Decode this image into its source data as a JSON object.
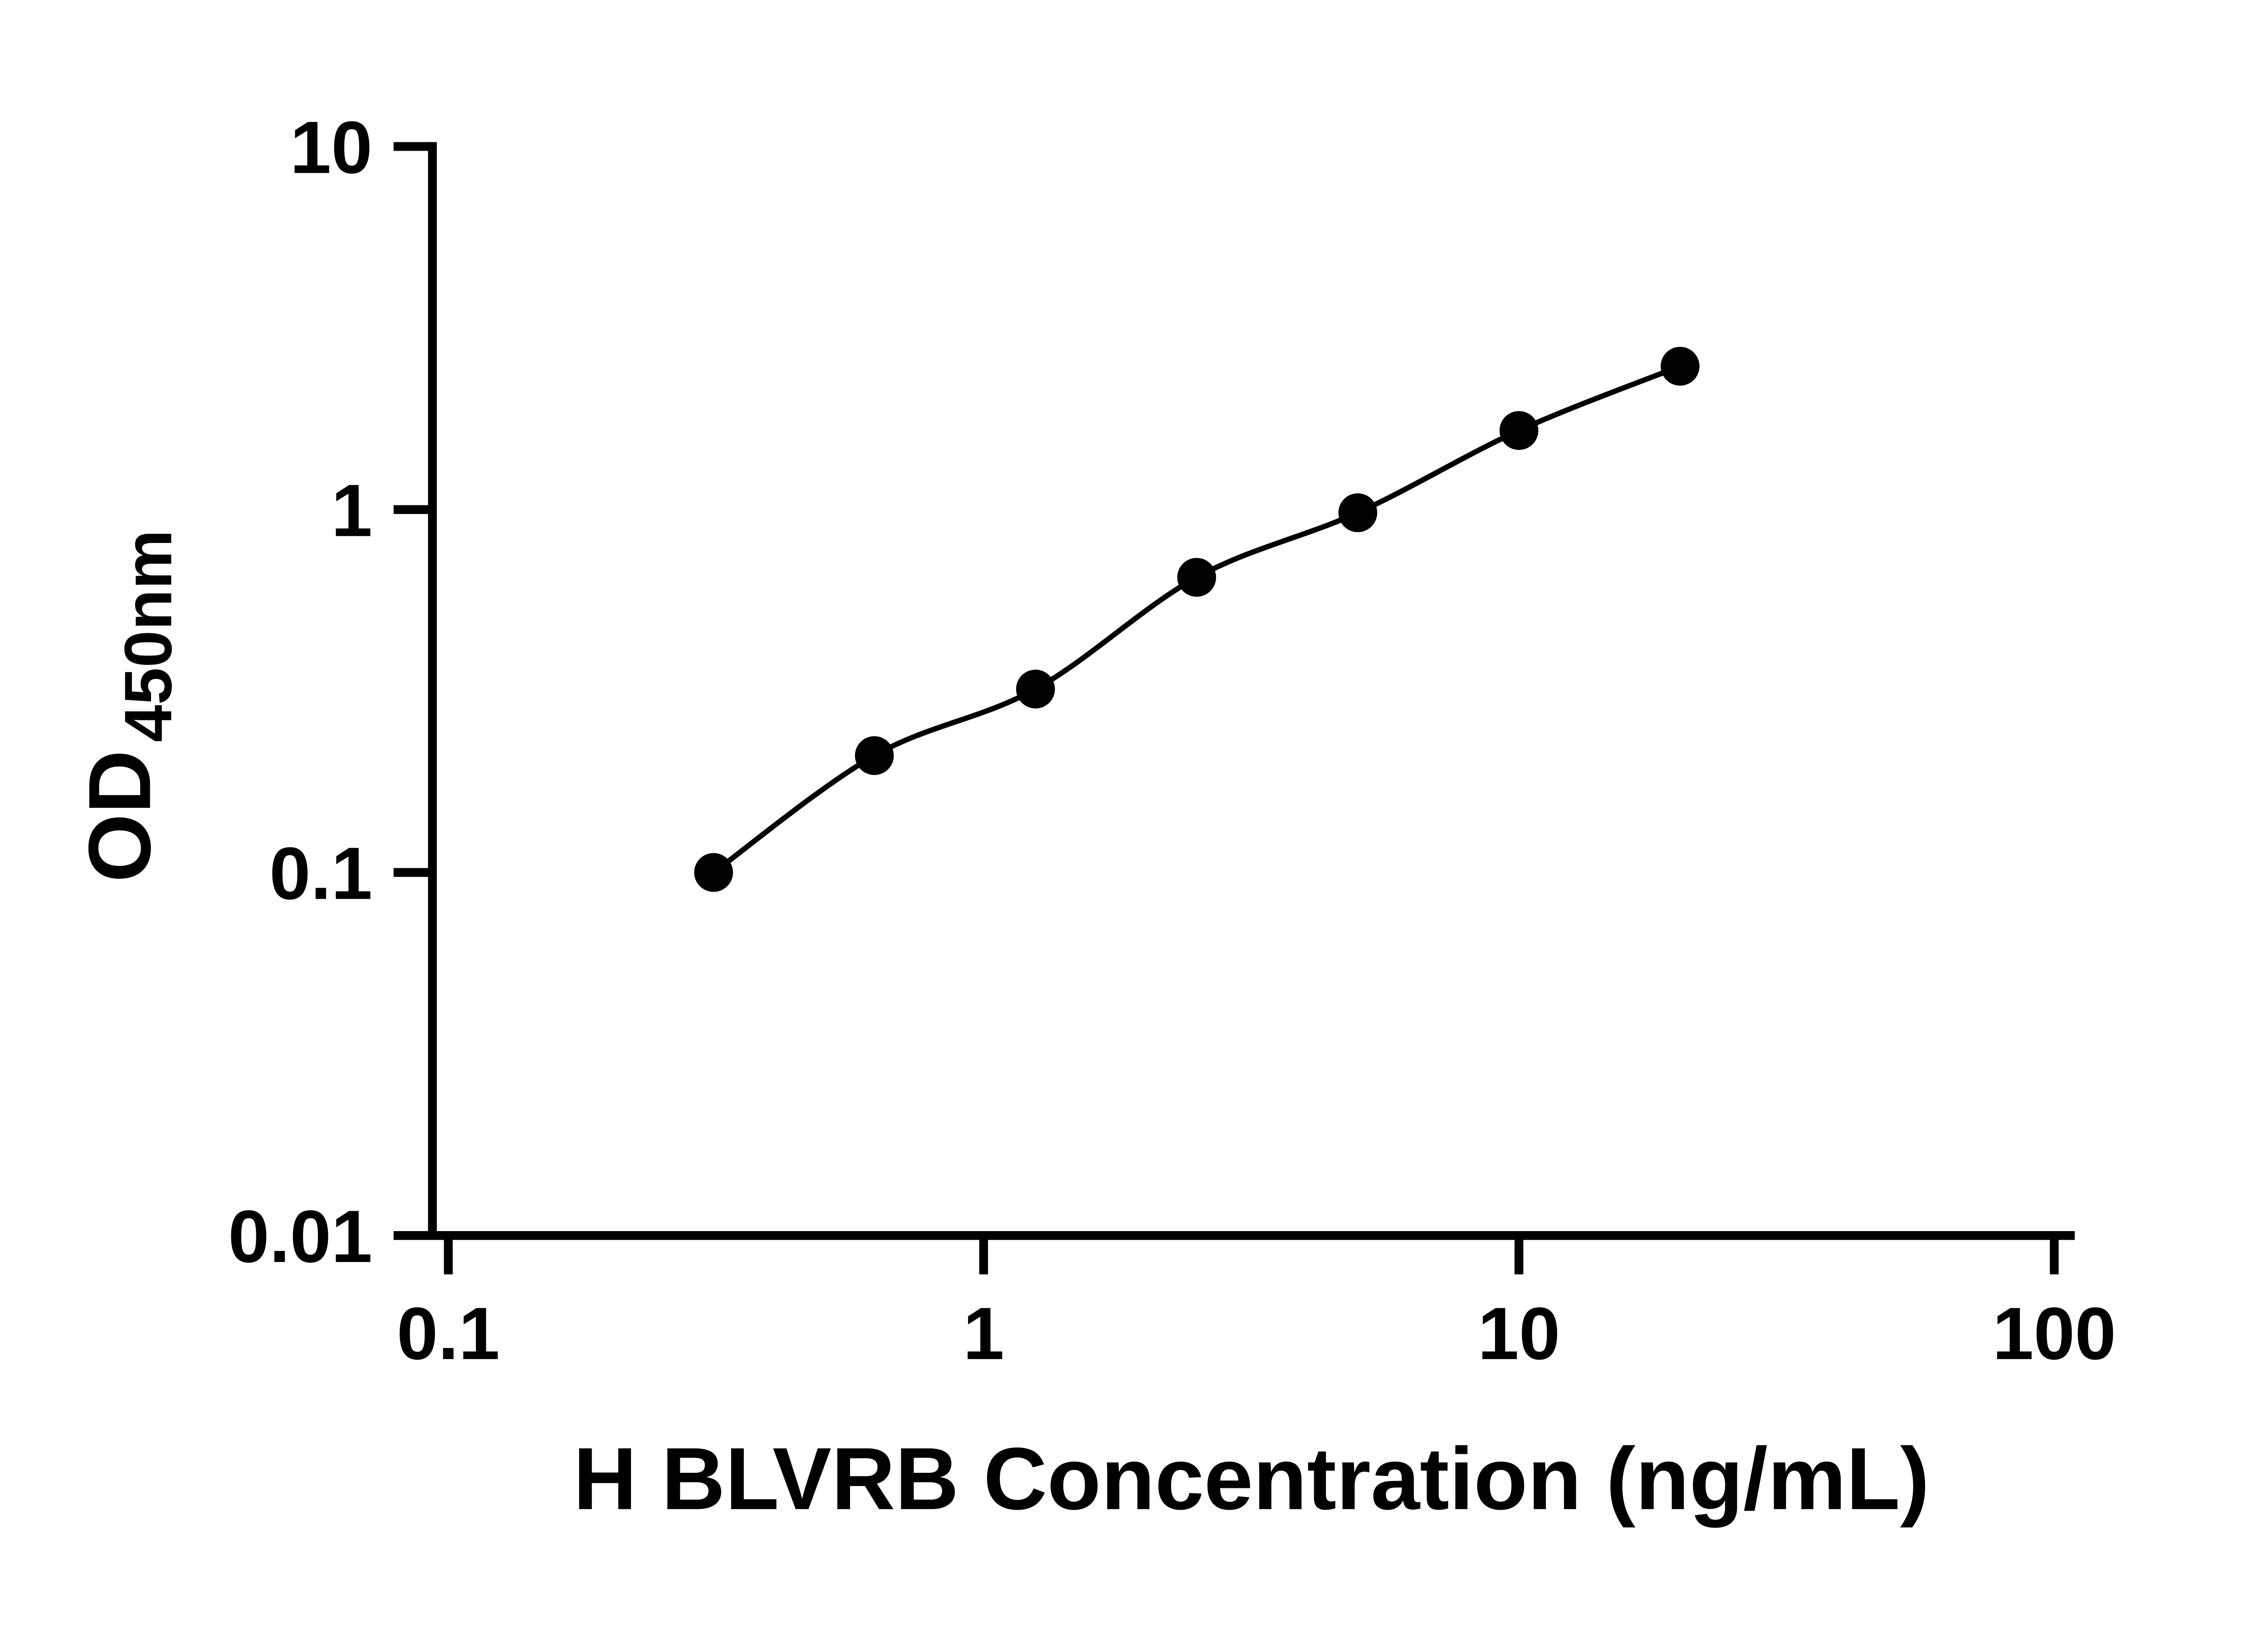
{
  "figure": {
    "background_color": "#ffffff",
    "axis_color": "#000000",
    "point_color": "#000000",
    "curve_color": "#000000"
  },
  "chart_data": {
    "type": "scatter",
    "x_scale": "log",
    "y_scale": "log",
    "title": "",
    "xlabel": "H BLVRB Concentration (ng/mL)",
    "ylabel_main": "OD",
    "ylabel_sub": "450nm",
    "xlim": [
      0.1,
      100
    ],
    "ylim": [
      0.01,
      10
    ],
    "x_ticks": [
      0.1,
      1,
      10,
      100
    ],
    "x_tick_labels": [
      "0.1",
      "1",
      "10",
      "100"
    ],
    "y_ticks": [
      0.01,
      0.1,
      1,
      10
    ],
    "y_tick_labels": [
      "0.01",
      "0.1",
      "1",
      "10"
    ],
    "grid": false,
    "legend": "none",
    "series": [
      {
        "marker": "filled-circle",
        "line": "smooth-fit-curve",
        "x": [
          0.313,
          0.625,
          1.25,
          2.5,
          5,
          10,
          20
        ],
        "y": [
          0.1,
          0.21,
          0.32,
          0.65,
          0.98,
          1.65,
          2.48
        ]
      }
    ]
  }
}
